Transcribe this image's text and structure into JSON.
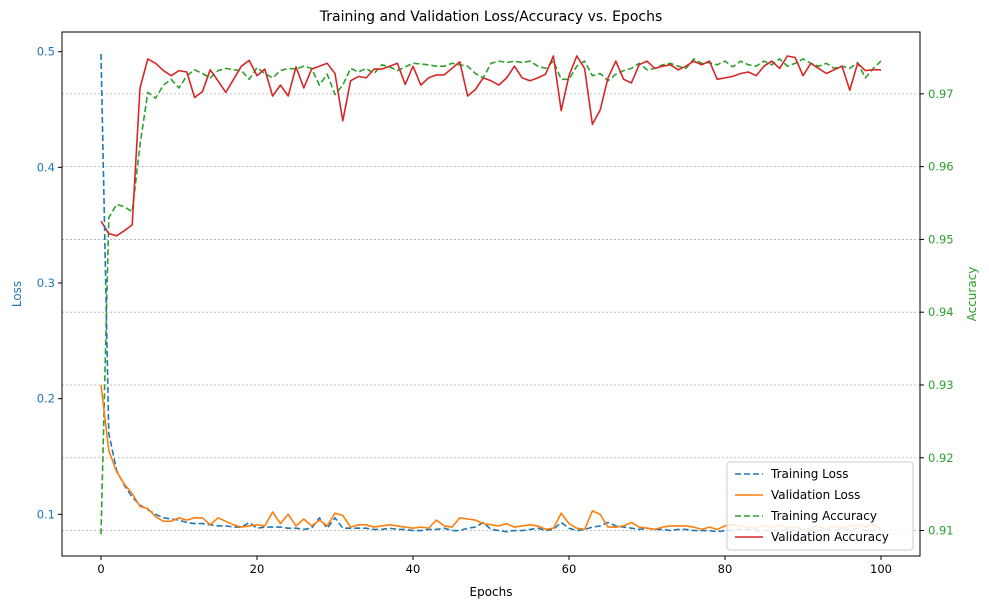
{
  "chart_data": {
    "type": "line",
    "title": "Training and Validation Loss/Accuracy vs. Epochs",
    "xlabel": "Epochs",
    "ylabel_left": "Loss",
    "ylabel_right": "Accuracy",
    "xlim": [
      -5,
      105
    ],
    "ylim_left": [
      0.064,
      0.517
    ],
    "ylim_right": [
      0.9065,
      0.9785
    ],
    "x_ticks": [
      0,
      20,
      40,
      60,
      80,
      100
    ],
    "y_ticks_left": [
      0.1,
      0.2,
      0.3,
      0.4,
      0.5
    ],
    "y_ticks_right": [
      0.91,
      0.92,
      0.93,
      0.94,
      0.95,
      0.96,
      0.97
    ],
    "grid": "horizontal dotted on right (accuracy) axis",
    "legend_position": "lower right",
    "colors": {
      "training_loss": "#1f77b4",
      "validation_loss": "#ff7f0e",
      "training_accuracy": "#2ca02c",
      "validation_accuracy": "#d62728",
      "left_axis": "#1f77b4",
      "right_axis": "#2ca02c"
    },
    "series": [
      {
        "name": "Training Loss",
        "axis": "left",
        "style": "dashed",
        "color": "#1f77b4",
        "x": [
          0,
          1,
          2,
          3,
          4,
          5,
          6,
          7,
          8,
          9,
          10,
          11,
          12,
          13,
          14,
          15,
          16,
          17,
          18,
          19,
          20,
          21,
          22,
          23,
          24,
          25,
          26,
          27,
          28,
          29,
          30,
          31,
          32,
          33,
          34,
          35,
          36,
          37,
          38,
          39,
          40,
          41,
          42,
          43,
          44,
          45,
          46,
          47,
          48,
          49,
          50,
          51,
          52,
          53,
          54,
          55,
          56,
          57,
          58,
          59,
          60,
          61,
          62,
          63,
          64,
          65,
          66,
          67,
          68,
          69,
          70,
          71,
          72,
          73,
          74,
          75,
          76,
          77,
          78,
          79,
          80,
          81,
          82,
          83,
          84,
          85,
          86,
          87,
          88,
          89,
          90,
          91,
          92,
          93,
          94,
          95,
          96,
          97,
          98,
          99,
          100
        ],
        "values": [
          0.498,
          0.17,
          0.138,
          0.125,
          0.115,
          0.108,
          0.104,
          0.1,
          0.097,
          0.096,
          0.095,
          0.093,
          0.092,
          0.092,
          0.091,
          0.09,
          0.09,
          0.089,
          0.089,
          0.093,
          0.088,
          0.089,
          0.089,
          0.089,
          0.088,
          0.088,
          0.087,
          0.088,
          0.097,
          0.088,
          0.097,
          0.088,
          0.088,
          0.088,
          0.088,
          0.087,
          0.087,
          0.088,
          0.087,
          0.087,
          0.086,
          0.086,
          0.087,
          0.087,
          0.088,
          0.086,
          0.086,
          0.088,
          0.089,
          0.093,
          0.087,
          0.086,
          0.085,
          0.086,
          0.086,
          0.087,
          0.088,
          0.086,
          0.087,
          0.093,
          0.088,
          0.086,
          0.087,
          0.089,
          0.09,
          0.093,
          0.09,
          0.089,
          0.088,
          0.087,
          0.088,
          0.087,
          0.087,
          0.086,
          0.087,
          0.087,
          0.086,
          0.086,
          0.086,
          0.085,
          0.086,
          0.086,
          0.087,
          0.087,
          0.086,
          0.086,
          0.086,
          0.086,
          0.087,
          0.086,
          0.087,
          0.086,
          0.086,
          0.087,
          0.086,
          0.087,
          0.087,
          0.088,
          0.086,
          0.086,
          0.087
        ]
      },
      {
        "name": "Validation Loss",
        "axis": "left",
        "style": "solid",
        "color": "#ff7f0e",
        "x": [
          0,
          1,
          2,
          3,
          4,
          5,
          6,
          7,
          8,
          9,
          10,
          11,
          12,
          13,
          14,
          15,
          16,
          17,
          18,
          19,
          20,
          21,
          22,
          23,
          24,
          25,
          26,
          27,
          28,
          29,
          30,
          31,
          32,
          33,
          34,
          35,
          36,
          37,
          38,
          39,
          40,
          41,
          42,
          43,
          44,
          45,
          46,
          47,
          48,
          49,
          50,
          51,
          52,
          53,
          54,
          55,
          56,
          57,
          58,
          59,
          60,
          61,
          62,
          63,
          64,
          65,
          66,
          67,
          68,
          69,
          70,
          71,
          72,
          73,
          74,
          75,
          76,
          77,
          78,
          79,
          80,
          81,
          82,
          83,
          84,
          85,
          86,
          87,
          88,
          89,
          90,
          91,
          92,
          93,
          94,
          95,
          96,
          97,
          98,
          99,
          100
        ],
        "values": [
          0.212,
          0.155,
          0.137,
          0.126,
          0.118,
          0.107,
          0.105,
          0.098,
          0.094,
          0.094,
          0.097,
          0.095,
          0.097,
          0.097,
          0.091,
          0.097,
          0.094,
          0.091,
          0.089,
          0.09,
          0.091,
          0.09,
          0.102,
          0.092,
          0.1,
          0.09,
          0.096,
          0.09,
          0.095,
          0.09,
          0.101,
          0.099,
          0.089,
          0.091,
          0.091,
          0.089,
          0.09,
          0.091,
          0.09,
          0.089,
          0.088,
          0.089,
          0.088,
          0.095,
          0.09,
          0.089,
          0.097,
          0.096,
          0.095,
          0.092,
          0.091,
          0.09,
          0.092,
          0.089,
          0.09,
          0.091,
          0.09,
          0.087,
          0.088,
          0.101,
          0.092,
          0.088,
          0.087,
          0.103,
          0.1,
          0.089,
          0.089,
          0.09,
          0.093,
          0.089,
          0.088,
          0.087,
          0.089,
          0.09,
          0.09,
          0.09,
          0.089,
          0.087,
          0.089,
          0.087,
          0.09,
          0.091,
          0.09,
          0.089,
          0.088,
          0.09,
          0.089,
          0.091,
          0.088,
          0.089,
          0.087,
          0.088,
          0.09,
          0.087,
          0.09,
          0.088,
          0.09,
          0.091,
          0.089,
          0.092,
          0.087
        ]
      },
      {
        "name": "Training Accuracy",
        "axis": "right",
        "style": "dashed",
        "color": "#2ca02c",
        "x": [
          0,
          1,
          2,
          3,
          4,
          5,
          6,
          7,
          8,
          9,
          10,
          11,
          12,
          13,
          14,
          15,
          16,
          17,
          18,
          19,
          20,
          21,
          22,
          23,
          24,
          25,
          26,
          27,
          28,
          29,
          30,
          31,
          32,
          33,
          34,
          35,
          36,
          37,
          38,
          39,
          40,
          41,
          42,
          43,
          44,
          45,
          46,
          47,
          48,
          49,
          50,
          51,
          52,
          53,
          54,
          55,
          56,
          57,
          58,
          59,
          60,
          61,
          62,
          63,
          64,
          65,
          66,
          67,
          68,
          69,
          70,
          71,
          72,
          73,
          74,
          75,
          76,
          77,
          78,
          79,
          80,
          81,
          82,
          83,
          84,
          85,
          86,
          87,
          88,
          89,
          90,
          91,
          92,
          93,
          94,
          95,
          96,
          97,
          98,
          99,
          100
        ],
        "values": [
          0.9095,
          0.953,
          0.9548,
          0.9545,
          0.9538,
          0.963,
          0.9702,
          0.9694,
          0.9712,
          0.972,
          0.9708,
          0.9725,
          0.9733,
          0.9728,
          0.9722,
          0.9732,
          0.9735,
          0.9733,
          0.9732,
          0.972,
          0.9736,
          0.9728,
          0.9722,
          0.9732,
          0.9735,
          0.9734,
          0.9738,
          0.9735,
          0.9712,
          0.9727,
          0.9699,
          0.9712,
          0.9735,
          0.973,
          0.9735,
          0.9728,
          0.974,
          0.9737,
          0.9732,
          0.9737,
          0.9742,
          0.9741,
          0.974,
          0.9738,
          0.9738,
          0.9742,
          0.974,
          0.9738,
          0.9728,
          0.9722,
          0.9742,
          0.9745,
          0.9743,
          0.9745,
          0.9743,
          0.9745,
          0.9738,
          0.9735,
          0.9745,
          0.972,
          0.972,
          0.9738,
          0.9745,
          0.9725,
          0.9728,
          0.9718,
          0.9727,
          0.9732,
          0.9735,
          0.9742,
          0.9733,
          0.9735,
          0.974,
          0.9742,
          0.9738,
          0.9735,
          0.9748,
          0.9742,
          0.9743,
          0.974,
          0.9745,
          0.9737,
          0.9745,
          0.974,
          0.9738,
          0.9745,
          0.974,
          0.9748,
          0.9738,
          0.9742,
          0.9748,
          0.9742,
          0.9738,
          0.9742,
          0.9735,
          0.9738,
          0.9735,
          0.9743,
          0.9722,
          0.9735,
          0.9745
        ]
      },
      {
        "name": "Validation Accuracy",
        "axis": "right",
        "style": "solid",
        "color": "#d62728",
        "x": [
          0,
          1,
          2,
          3,
          4,
          5,
          6,
          7,
          8,
          9,
          10,
          11,
          12,
          13,
          14,
          15,
          16,
          17,
          18,
          19,
          20,
          21,
          22,
          23,
          24,
          25,
          26,
          27,
          28,
          29,
          30,
          31,
          32,
          33,
          34,
          35,
          36,
          37,
          38,
          39,
          40,
          41,
          42,
          43,
          44,
          45,
          46,
          47,
          48,
          49,
          50,
          51,
          52,
          53,
          54,
          55,
          56,
          57,
          58,
          59,
          60,
          61,
          62,
          63,
          64,
          65,
          66,
          67,
          68,
          69,
          70,
          71,
          72,
          73,
          74,
          75,
          76,
          77,
          78,
          79,
          80,
          81,
          82,
          83,
          84,
          85,
          86,
          87,
          88,
          89,
          90,
          91,
          92,
          93,
          94,
          95,
          96,
          97,
          98,
          99,
          100
        ],
        "values": [
          0.9525,
          0.9508,
          0.9505,
          0.9512,
          0.952,
          0.9708,
          0.9748,
          0.9742,
          0.9732,
          0.9725,
          0.9732,
          0.973,
          0.9695,
          0.9703,
          0.9733,
          0.9718,
          0.9702,
          0.972,
          0.9738,
          0.9746,
          0.9725,
          0.9734,
          0.9697,
          0.9712,
          0.9697,
          0.9737,
          0.9708,
          0.9734,
          0.9738,
          0.9742,
          0.9728,
          0.9663,
          0.9718,
          0.9724,
          0.9722,
          0.9734,
          0.9734,
          0.9738,
          0.9742,
          0.9713,
          0.9738,
          0.9712,
          0.9722,
          0.9726,
          0.9726,
          0.9735,
          0.9744,
          0.9697,
          0.9706,
          0.9722,
          0.9718,
          0.9712,
          0.9722,
          0.9738,
          0.9722,
          0.9718,
          0.9722,
          0.9727,
          0.9752,
          0.9677,
          0.9725,
          0.9752,
          0.9735,
          0.9658,
          0.9678,
          0.9722,
          0.9745,
          0.972,
          0.9715,
          0.974,
          0.9745,
          0.9735,
          0.9738,
          0.974,
          0.9733,
          0.9738,
          0.9745,
          0.974,
          0.9745,
          0.972,
          0.9722,
          0.9724,
          0.9728,
          0.973,
          0.9725,
          0.9738,
          0.9745,
          0.9735,
          0.9752,
          0.975,
          0.9725,
          0.9742,
          0.9735,
          0.9728,
          0.9733,
          0.9738,
          0.9705,
          0.9742,
          0.9732,
          0.9733,
          0.9733
        ]
      }
    ]
  }
}
